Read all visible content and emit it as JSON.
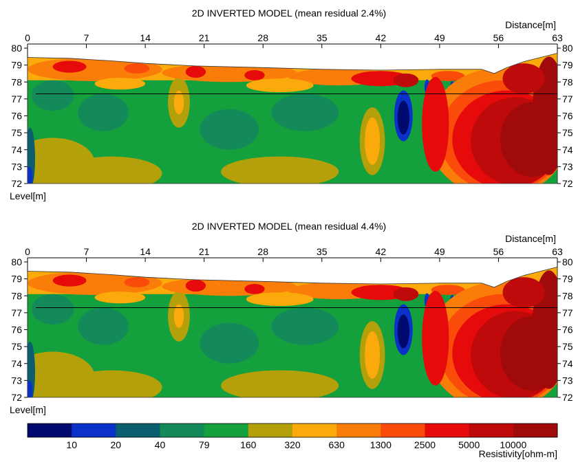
{
  "palette": [
    "#000a6e",
    "#0a32c8",
    "#0a5e6e",
    "#148a5a",
    "#14a03c",
    "#b4a00a",
    "#faaa0a",
    "#fa7d0a",
    "#fa4b0a",
    "#e60a0a",
    "#be0a0a",
    "#a00a0a"
  ],
  "chart_data": [
    {
      "type": "heatmap",
      "title": "2D INVERTED MODEL (mean residual 2.4%)",
      "xlabel": "Distance[m]",
      "ylabel": "Level[m]",
      "x_ticks": [
        "0",
        "7",
        "14",
        "21",
        "28",
        "35",
        "42",
        "49",
        "56",
        "63"
      ],
      "y_ticks": [
        "80",
        "79",
        "78",
        "77",
        "76",
        "75",
        "74",
        "73",
        "72"
      ],
      "xlim": [
        0,
        63
      ],
      "ylim": [
        72,
        80
      ],
      "reference_line_level": 77.3,
      "color_scale": "resistivity bands from legend"
    },
    {
      "type": "heatmap",
      "title": "2D INVERTED MODEL (mean residual 4.4%)",
      "xlabel": "Distance[m]",
      "ylabel": "Level[m]",
      "x_ticks": [
        "0",
        "7",
        "14",
        "21",
        "28",
        "35",
        "42",
        "49",
        "56",
        "63"
      ],
      "y_ticks": [
        "80",
        "79",
        "78",
        "77",
        "76",
        "75",
        "74",
        "73",
        "72"
      ],
      "xlim": [
        0,
        63
      ],
      "ylim": [
        72,
        80
      ],
      "reference_line_level": 77.3,
      "color_scale": "resistivity bands from legend"
    }
  ],
  "legend": {
    "title": "Resistivity[ohm-m]",
    "labels": [
      "10",
      "20",
      "40",
      "79",
      "160",
      "320",
      "630",
      "1300",
      "2500",
      "5000",
      "10000"
    ]
  }
}
